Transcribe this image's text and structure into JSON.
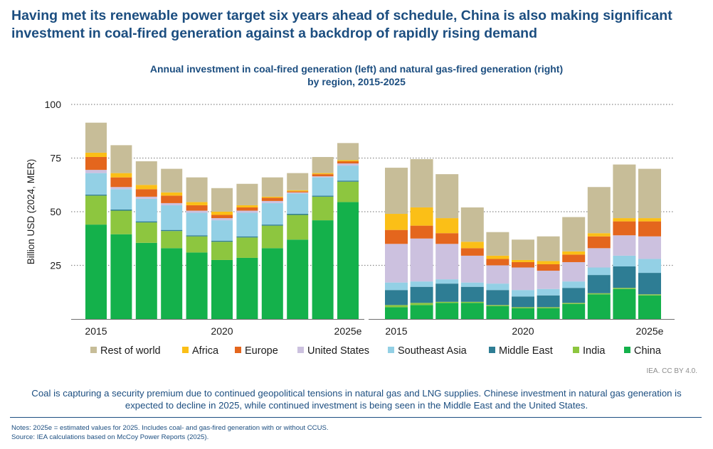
{
  "headline": "Having met its renewable power target six years ahead of schedule, China is also making significant investment in coal-fired generation against a backdrop of rapidly rising demand",
  "subtitle": {
    "line1": "Annual investment in coal-fired generation (left) and natural gas-fired generation (right)",
    "line2": "by region, 2015-2025"
  },
  "credit": "IEA. CC BY 4.0.",
  "caption": "Coal is capturing a security premium due to continued geopolitical tensions in natural gas and LNG supplies. Chinese investment in natural gas generation is expected to decline in 2025, while continued investment is being seen in the Middle East and the United States.",
  "notes": {
    "line1": "Notes: 2025e = estimated values for 2025. Includes coal- and gas-fired generation with or without CCUS.",
    "line2": "Source: IEA calculations based on McCoy Power Reports (2025)."
  },
  "chart_data": {
    "type": "bar",
    "stacked": true,
    "ylabel": "Billion USD (2024, MER)",
    "ylim": [
      0,
      100
    ],
    "yticks": [
      25,
      50,
      75,
      100
    ],
    "grid": "dotted horizontal",
    "legend_position": "bottom",
    "categories": [
      "2015",
      "2016",
      "2017",
      "2018",
      "2019",
      "2020",
      "2021",
      "2022",
      "2023",
      "2024",
      "2025e"
    ],
    "category_tick_labels": [
      "2015",
      "",
      "",
      "",
      "",
      "2020",
      "",
      "",
      "",
      "",
      "2025e"
    ],
    "panels": [
      {
        "name": "coal-fired generation",
        "series": [
          {
            "name": "China",
            "color": "#14b14b",
            "values": [
              44,
              39.5,
              35.5,
              33,
              31,
              27.5,
              28.5,
              33,
              37,
              46,
              54.5
            ]
          },
          {
            "name": "India",
            "color": "#8dc63f",
            "values": [
              13.5,
              11,
              9.5,
              8,
              7.5,
              8.5,
              9.5,
              10.5,
              11.5,
              11,
              9.5
            ]
          },
          {
            "name": "Middle East",
            "color": "#2e7d94",
            "values": [
              0.5,
              0.5,
              0.5,
              0.5,
              0.5,
              0.5,
              0.5,
              0.5,
              0.5,
              0.5,
              0.5
            ]
          },
          {
            "name": "Southeast Asia",
            "color": "#93d0e5",
            "values": [
              10,
              9.5,
              10.5,
              11.5,
              10.5,
              9.5,
              11,
              10,
              9.5,
              8.5,
              7
            ]
          },
          {
            "name": "United States",
            "color": "#ccc1df",
            "values": [
              1.5,
              1,
              1,
              1,
              1,
              1,
              1,
              1,
              0.5,
              0.5,
              1
            ]
          },
          {
            "name": "Europe",
            "color": "#e4661d",
            "values": [
              6,
              4.5,
              3.5,
              3.5,
              2.5,
              1.5,
              1.5,
              1.5,
              0.5,
              1,
              1
            ]
          },
          {
            "name": "Africa",
            "color": "#fbbf17",
            "values": [
              2,
              2,
              2,
              1.5,
              1.5,
              1.5,
              1,
              0.5,
              0.5,
              0.5,
              0.5
            ]
          },
          {
            "name": "Rest of world",
            "color": "#c7bd98",
            "values": [
              14,
              13,
              11,
              11,
              11.5,
              11,
              10,
              9,
              8,
              7.5,
              8
            ]
          }
        ]
      },
      {
        "name": "natural gas-fired generation",
        "series": [
          {
            "name": "China",
            "color": "#14b14b",
            "values": [
              5.5,
              6.5,
              7.5,
              7.5,
              6,
              5,
              5,
              7,
              11.5,
              14,
              11
            ]
          },
          {
            "name": "India",
            "color": "#8dc63f",
            "values": [
              1,
              1,
              0.5,
              0.5,
              0.5,
              0.5,
              0.5,
              0.5,
              0.5,
              0.5,
              0.5
            ]
          },
          {
            "name": "Middle East",
            "color": "#2e7d94",
            "values": [
              7,
              7.5,
              8.5,
              7,
              7,
              5,
              5.5,
              7,
              8.5,
              10,
              10
            ]
          },
          {
            "name": "Southeast Asia",
            "color": "#93d0e5",
            "values": [
              3.5,
              2.5,
              2,
              2,
              3,
              3,
              3,
              3,
              3.5,
              5,
              6.5
            ]
          },
          {
            "name": "United States",
            "color": "#ccc1df",
            "values": [
              18,
              20,
              16.5,
              12.5,
              8.5,
              10.5,
              8.5,
              9,
              9,
              9.5,
              10.5
            ]
          },
          {
            "name": "Europe",
            "color": "#e4661d",
            "values": [
              6.5,
              6,
              5,
              3.5,
              3,
              2.5,
              3,
              3.5,
              5.5,
              6.5,
              7
            ]
          },
          {
            "name": "Africa",
            "color": "#fbbf17",
            "values": [
              7.5,
              8.5,
              7,
              3,
              1.5,
              1,
              1.5,
              1.5,
              1.5,
              1.5,
              1.5
            ]
          },
          {
            "name": "Rest of world",
            "color": "#c7bd98",
            "values": [
              21.5,
              22.5,
              20.5,
              16,
              11,
              9.5,
              11.5,
              16,
              21.5,
              25,
              23
            ]
          }
        ]
      }
    ],
    "legend_order": [
      "Rest of world",
      "Africa",
      "Europe",
      "United States",
      "Southeast Asia",
      "Middle East",
      "India",
      "China"
    ]
  }
}
